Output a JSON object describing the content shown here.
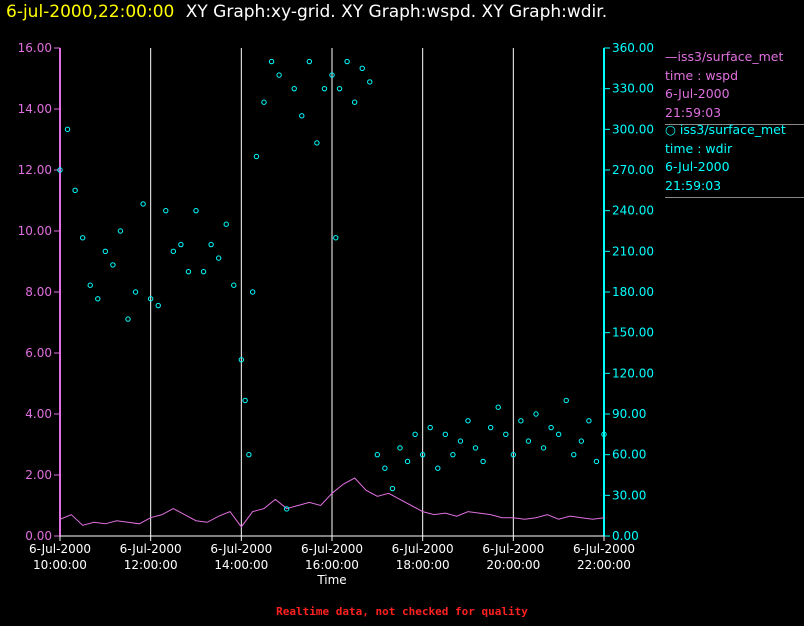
{
  "header": {
    "timestamp": "6-jul-2000,22:00:00",
    "graphs": "XY Graph:xy-grid.  XY Graph:wspd.  XY Graph:wdir."
  },
  "legend": [
    {
      "series": "iss3/surface_met",
      "var": "time : wspd",
      "date": "6-Jul-2000",
      "time": "21:59:03",
      "color": "#e070e0",
      "marker": "line"
    },
    {
      "series": "iss3/surface_met",
      "var": "time : wdir",
      "date": "6-Jul-2000",
      "time": "21:59:03",
      "color": "#00ffff",
      "marker": "circle"
    }
  ],
  "footer": "Realtime data, not checked for quality",
  "colors": {
    "left_axis": "#e070e0",
    "right_axis": "#00ffff",
    "grid": "#ffffff"
  },
  "chart_data": {
    "type": "scatter",
    "xlabel": "Time",
    "x_tick_labels": [
      [
        "6-Jul-2000",
        "10:00:00"
      ],
      [
        "6-Jul-2000",
        "12:00:00"
      ],
      [
        "6-Jul-2000",
        "14:00:00"
      ],
      [
        "6-Jul-2000",
        "16:00:00"
      ],
      [
        "6-Jul-2000",
        "18:00:00"
      ],
      [
        "6-Jul-2000",
        "20:00:00"
      ],
      [
        "6-Jul-2000",
        "22:00:00"
      ]
    ],
    "xlim": [
      "2000-07-06 10:00:00",
      "2000-07-06 22:00:00"
    ],
    "grid_x": [
      "2000-07-06 12:00:00",
      "2000-07-06 14:00:00",
      "2000-07-06 16:00:00",
      "2000-07-06 18:00:00",
      "2000-07-06 20:00:00"
    ],
    "y_left": {
      "ylim": [
        0,
        16
      ],
      "ticks": [
        "0.00",
        "2.00",
        "4.00",
        "6.00",
        "8.00",
        "10.00",
        "12.00",
        "14.00",
        "16.00"
      ]
    },
    "y_right": {
      "ylim": [
        0,
        360
      ],
      "ticks": [
        "0.00",
        "30.00",
        "60.00",
        "90.00",
        "120.00",
        "150.00",
        "180.00",
        "210.00",
        "240.00",
        "270.00",
        "300.00",
        "330.00",
        "360.00"
      ]
    },
    "series": [
      {
        "name": "time : wspd",
        "axis": "left",
        "style": "line",
        "points": [
          [
            "10:00",
            0.55
          ],
          [
            "10:15",
            0.7
          ],
          [
            "10:30",
            0.35
          ],
          [
            "10:45",
            0.45
          ],
          [
            "11:00",
            0.4
          ],
          [
            "11:15",
            0.5
          ],
          [
            "11:30",
            0.45
          ],
          [
            "11:45",
            0.4
          ],
          [
            "12:00",
            0.6
          ],
          [
            "12:15",
            0.7
          ],
          [
            "12:30",
            0.9
          ],
          [
            "12:45",
            0.7
          ],
          [
            "13:00",
            0.5
          ],
          [
            "13:15",
            0.45
          ],
          [
            "13:30",
            0.65
          ],
          [
            "13:45",
            0.8
          ],
          [
            "14:00",
            0.3
          ],
          [
            "14:15",
            0.8
          ],
          [
            "14:30",
            0.9
          ],
          [
            "14:45",
            1.2
          ],
          [
            "15:00",
            0.9
          ],
          [
            "15:15",
            1.0
          ],
          [
            "15:30",
            1.1
          ],
          [
            "15:45",
            1.0
          ],
          [
            "16:00",
            1.4
          ],
          [
            "16:15",
            1.7
          ],
          [
            "16:30",
            1.9
          ],
          [
            "16:45",
            1.5
          ],
          [
            "17:00",
            1.3
          ],
          [
            "17:15",
            1.4
          ],
          [
            "17:30",
            1.2
          ],
          [
            "17:45",
            1.0
          ],
          [
            "18:00",
            0.8
          ],
          [
            "18:15",
            0.7
          ],
          [
            "18:30",
            0.75
          ],
          [
            "18:45",
            0.65
          ],
          [
            "19:00",
            0.8
          ],
          [
            "19:15",
            0.75
          ],
          [
            "19:30",
            0.7
          ],
          [
            "19:45",
            0.6
          ],
          [
            "20:00",
            0.6
          ],
          [
            "20:15",
            0.55
          ],
          [
            "20:30",
            0.6
          ],
          [
            "20:45",
            0.7
          ],
          [
            "21:00",
            0.55
          ],
          [
            "21:15",
            0.65
          ],
          [
            "21:30",
            0.6
          ],
          [
            "21:45",
            0.55
          ],
          [
            "22:00",
            0.6
          ]
        ]
      },
      {
        "name": "time : wdir",
        "axis": "right",
        "style": "circle",
        "points": [
          [
            "10:00",
            270
          ],
          [
            "10:10",
            300
          ],
          [
            "10:20",
            255
          ],
          [
            "10:30",
            220
          ],
          [
            "10:40",
            185
          ],
          [
            "10:50",
            175
          ],
          [
            "11:00",
            210
          ],
          [
            "11:10",
            200
          ],
          [
            "11:20",
            225
          ],
          [
            "11:30",
            160
          ],
          [
            "11:40",
            180
          ],
          [
            "11:50",
            245
          ],
          [
            "12:00",
            175
          ],
          [
            "12:10",
            170
          ],
          [
            "12:20",
            240
          ],
          [
            "12:30",
            210
          ],
          [
            "12:40",
            215
          ],
          [
            "12:50",
            195
          ],
          [
            "13:00",
            240
          ],
          [
            "13:10",
            195
          ],
          [
            "13:20",
            215
          ],
          [
            "13:30",
            205
          ],
          [
            "13:40",
            230
          ],
          [
            "13:50",
            185
          ],
          [
            "14:00",
            130
          ],
          [
            "14:05",
            100
          ],
          [
            "14:10",
            60
          ],
          [
            "14:15",
            180
          ],
          [
            "14:20",
            280
          ],
          [
            "14:30",
            320
          ],
          [
            "14:40",
            350
          ],
          [
            "14:50",
            340
          ],
          [
            "15:00",
            20
          ],
          [
            "15:10",
            330
          ],
          [
            "15:20",
            310
          ],
          [
            "15:30",
            350
          ],
          [
            "15:40",
            290
          ],
          [
            "15:50",
            330
          ],
          [
            "16:00",
            340
          ],
          [
            "16:05",
            220
          ],
          [
            "16:10",
            330
          ],
          [
            "16:20",
            350
          ],
          [
            "16:30",
            320
          ],
          [
            "16:40",
            345
          ],
          [
            "16:50",
            335
          ],
          [
            "17:00",
            60
          ],
          [
            "17:10",
            50
          ],
          [
            "17:20",
            35
          ],
          [
            "17:30",
            65
          ],
          [
            "17:40",
            55
          ],
          [
            "17:50",
            75
          ],
          [
            "18:00",
            60
          ],
          [
            "18:10",
            80
          ],
          [
            "18:20",
            50
          ],
          [
            "18:30",
            75
          ],
          [
            "18:40",
            60
          ],
          [
            "18:50",
            70
          ],
          [
            "19:00",
            85
          ],
          [
            "19:10",
            65
          ],
          [
            "19:20",
            55
          ],
          [
            "19:30",
            80
          ],
          [
            "19:40",
            95
          ],
          [
            "19:50",
            75
          ],
          [
            "20:00",
            60
          ],
          [
            "20:10",
            85
          ],
          [
            "20:20",
            70
          ],
          [
            "20:30",
            90
          ],
          [
            "20:40",
            65
          ],
          [
            "20:50",
            80
          ],
          [
            "21:00",
            75
          ],
          [
            "21:10",
            100
          ],
          [
            "21:20",
            60
          ],
          [
            "21:30",
            70
          ],
          [
            "21:40",
            85
          ],
          [
            "21:50",
            55
          ],
          [
            "22:00",
            75
          ]
        ]
      }
    ]
  }
}
